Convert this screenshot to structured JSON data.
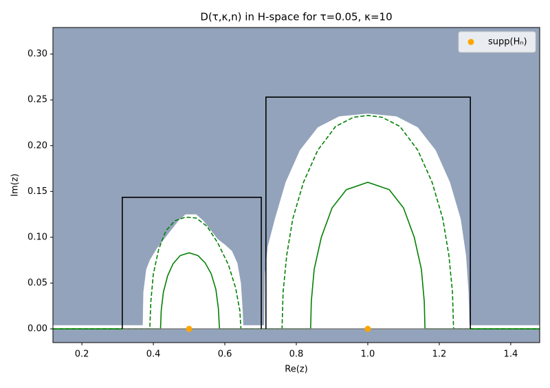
{
  "chart_data": {
    "type": "line",
    "title": "D(τ,κ,n) in H-space for τ=0.05, κ=10",
    "xlabel": "Re(z)",
    "ylabel": "Im(z)",
    "xlim": [
      0.119,
      1.481
    ],
    "ylim": [
      -0.015,
      0.329
    ],
    "xticks": [
      0.2,
      0.4,
      0.6,
      0.8,
      {
        "value": 1,
        "label": "1.0"
      },
      1.2,
      1.4
    ],
    "yticks": [
      {
        "value": 0,
        "label": "0.00"
      },
      0.05,
      {
        "value": 0.1,
        "label": "0.10"
      },
      0.15,
      {
        "value": 0.2,
        "label": "0.20"
      },
      0.25,
      {
        "value": 0.3,
        "label": "0.30"
      }
    ],
    "background": "#93a3bb",
    "legend": "upper right",
    "series": [
      {
        "style": "fill",
        "color": "#ffffff",
        "x": [
          0.119,
          1.481
        ],
        "values": [
          0.004,
          0.004
        ]
      },
      {
        "style": "fill",
        "color": "#ffffff",
        "x": [
          0.37,
          0.372,
          0.38,
          0.39,
          0.41,
          0.43,
          0.45,
          0.47,
          0.49,
          0.52,
          0.54,
          0.56,
          0.58,
          0.6,
          0.62,
          0.635,
          0.645,
          0.65,
          0.652
        ],
        "values": [
          0,
          0.04,
          0.065,
          0.075,
          0.088,
          0.098,
          0.108,
          0.118,
          0.125,
          0.125,
          0.118,
          0.108,
          0.098,
          0.092,
          0.085,
          0.072,
          0.05,
          0.02,
          0
        ]
      },
      {
        "style": "fill",
        "color": "#ffffff",
        "x": [
          0.71,
          0.712,
          0.72,
          0.74,
          0.77,
          0.81,
          0.86,
          0.92,
          1.0,
          1.08,
          1.14,
          1.19,
          1.23,
          1.26,
          1.275,
          1.282,
          1.285
        ],
        "values": [
          0,
          0.06,
          0.09,
          0.12,
          0.16,
          0.195,
          0.22,
          0.232,
          0.235,
          0.232,
          0.22,
          0.195,
          0.16,
          0.12,
          0.08,
          0.04,
          0
        ]
      },
      {
        "style": "solid",
        "color": "#008000",
        "x": [
          0.119,
          0.42,
          0.422,
          0.428,
          0.44,
          0.455,
          0.475,
          0.5,
          0.525,
          0.545,
          0.562,
          0.575,
          0.582,
          0.585,
          0.84,
          0.842,
          0.85,
          0.87,
          0.9,
          0.94,
          1.0,
          1.06,
          1.1,
          1.13,
          1.15,
          1.158,
          1.16,
          1.481
        ],
        "values": [
          0,
          0,
          0.02,
          0.04,
          0.058,
          0.071,
          0.08,
          0.083,
          0.08,
          0.072,
          0.06,
          0.043,
          0.022,
          0,
          0,
          0.03,
          0.065,
          0.1,
          0.132,
          0.152,
          0.16,
          0.152,
          0.132,
          0.1,
          0.065,
          0.03,
          0,
          0
        ]
      },
      {
        "style": "dashed",
        "color": "#008000",
        "x": [
          0.119,
          0.39,
          0.393,
          0.4,
          0.415,
          0.435,
          0.46,
          0.49,
          0.52,
          0.55,
          0.58,
          0.61,
          0.63,
          0.642,
          0.645,
          0.76,
          0.763,
          0.773,
          0.79,
          0.82,
          0.86,
          0.91,
          0.96,
          1.0,
          1.04,
          1.09,
          1.14,
          1.18,
          1.21,
          1.227,
          1.237,
          1.24,
          1.481
        ],
        "values": [
          0,
          0,
          0.03,
          0.06,
          0.087,
          0.107,
          0.118,
          0.122,
          0.121,
          0.112,
          0.094,
          0.07,
          0.045,
          0.02,
          0,
          0,
          0.04,
          0.08,
          0.12,
          0.16,
          0.195,
          0.221,
          0.231,
          0.233,
          0.231,
          0.221,
          0.195,
          0.16,
          0.12,
          0.08,
          0.04,
          0,
          0
        ]
      },
      {
        "style": "solid",
        "color": "#808080",
        "x": [
          0.313,
          1.287
        ],
        "values": [
          0,
          0
        ]
      },
      {
        "style": "solid",
        "color": "#000000",
        "x": [
          0.313,
          0.313,
          0.702,
          0.702
        ],
        "values": [
          0,
          0.1436,
          0.1436,
          0
        ]
      },
      {
        "style": "solid",
        "color": "#000000",
        "x": [
          0.715,
          0.715,
          1.287,
          1.287
        ],
        "values": [
          0,
          0.253,
          0.253,
          0
        ]
      },
      {
        "style": "points",
        "name": "supp(Hₙ)",
        "color": "#ffa500",
        "x": [
          0.5,
          1.0
        ],
        "values": [
          0,
          0
        ]
      }
    ]
  }
}
